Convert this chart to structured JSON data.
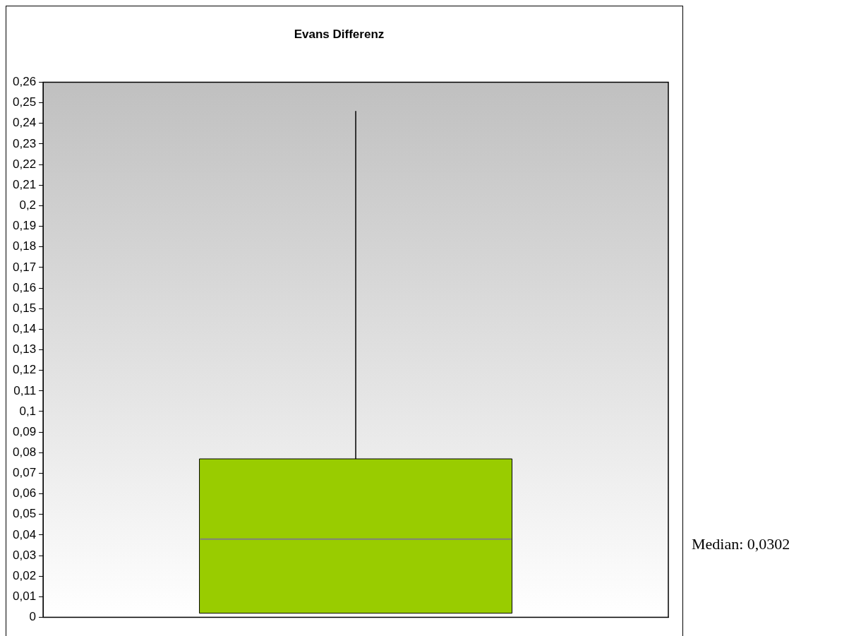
{
  "chart_data": {
    "type": "box",
    "title": "Evans Differenz",
    "categories": [
      null
    ],
    "boxes": [
      {
        "low": 0.002,
        "q1": 0.002,
        "median": 0.038,
        "q3": 0.077,
        "high": 0.246
      }
    ],
    "color": "#99cc00",
    "ylim": [
      0,
      0.26
    ],
    "yticks": [
      {
        "value": 0,
        "label": "0"
      },
      {
        "value": 0.01,
        "label": "0,01"
      },
      {
        "value": 0.02,
        "label": "0,02"
      },
      {
        "value": 0.03,
        "label": "0,03"
      },
      {
        "value": 0.04,
        "label": "0,04"
      },
      {
        "value": 0.05,
        "label": "0,05"
      },
      {
        "value": 0.06,
        "label": "0,06"
      },
      {
        "value": 0.07,
        "label": "0,07"
      },
      {
        "value": 0.08,
        "label": "0,08"
      },
      {
        "value": 0.09,
        "label": "0,09"
      },
      {
        "value": 0.1,
        "label": "0,1"
      },
      {
        "value": 0.11,
        "label": "0,11"
      },
      {
        "value": 0.12,
        "label": "0,12"
      },
      {
        "value": 0.13,
        "label": "0,13"
      },
      {
        "value": 0.14,
        "label": "0,14"
      },
      {
        "value": 0.15,
        "label": "0,15"
      },
      {
        "value": 0.16,
        "label": "0,16"
      },
      {
        "value": 0.17,
        "label": "0,17"
      },
      {
        "value": 0.18,
        "label": "0,18"
      },
      {
        "value": 0.19,
        "label": "0,19"
      },
      {
        "value": 0.2,
        "label": "0,2"
      },
      {
        "value": 0.21,
        "label": "0,21"
      },
      {
        "value": 0.22,
        "label": "0,22"
      },
      {
        "value": 0.23,
        "label": "0,23"
      },
      {
        "value": 0.24,
        "label": "0,24"
      },
      {
        "value": 0.25,
        "label": "0,25"
      },
      {
        "value": 0.26,
        "label": "0,26"
      }
    ],
    "grid": false,
    "legend": false,
    "annotations": [
      "Median: 0,0302"
    ]
  }
}
